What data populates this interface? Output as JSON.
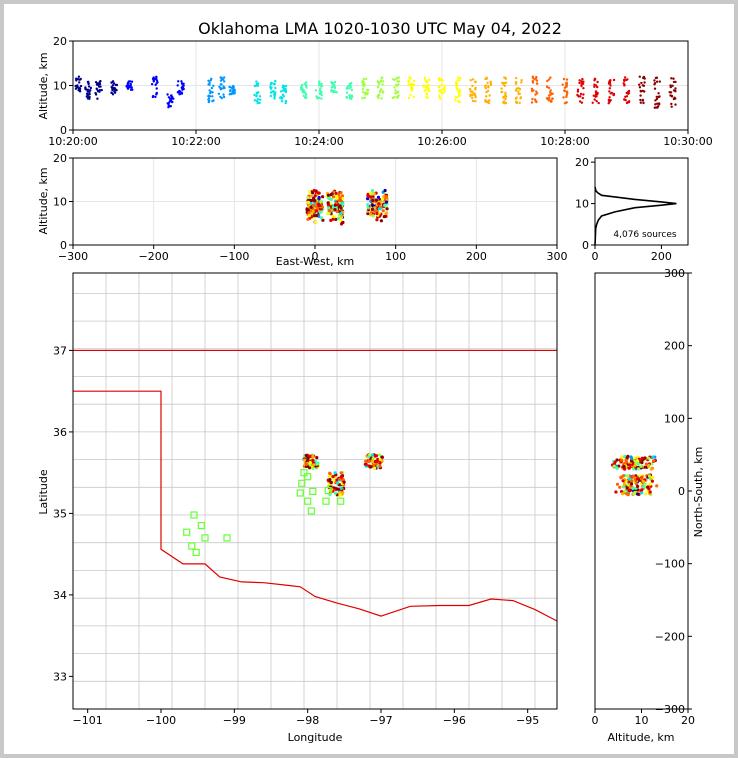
{
  "title": "Oklahoma LMA 1020-1030 UTC May 04, 2022",
  "colors": {
    "time_ramp": [
      "#00008b",
      "#0000ff",
      "#0096ff",
      "#00e5e5",
      "#40ffb0",
      "#a0ff40",
      "#ffff00",
      "#ffb000",
      "#ff6000",
      "#e00000",
      "#8b0000"
    ],
    "state_border": "#e00000",
    "county_lines": "#c8c8c8",
    "stations": "#66ff33",
    "histogram": "#000000",
    "grid": "#e6e6e6"
  },
  "chart_data": [
    {
      "id": "altitude_time",
      "type": "scatter",
      "ylabel": "Altitude, km",
      "xlim": [
        "10:20:00",
        "10:30:00"
      ],
      "ylim": [
        0,
        20
      ],
      "x_ticks": [
        "10:20:00",
        "10:22:00",
        "10:24:00",
        "10:26:00",
        "10:28:00",
        "10:30:00"
      ],
      "y_ticks": [
        0,
        10,
        20
      ],
      "grid": true,
      "clusters": [
        {
          "t": "10:20:05",
          "alt": [
            8,
            12
          ]
        },
        {
          "t": "10:20:15",
          "alt": [
            7,
            11
          ]
        },
        {
          "t": "10:20:25",
          "alt": [
            7,
            11
          ]
        },
        {
          "t": "10:20:40",
          "alt": [
            8,
            11
          ]
        },
        {
          "t": "10:20:55",
          "alt": [
            9,
            11
          ]
        },
        {
          "t": "10:21:20",
          "alt": [
            7,
            12
          ]
        },
        {
          "t": "10:21:35",
          "alt": [
            5,
            8
          ]
        },
        {
          "t": "10:21:45",
          "alt": [
            8,
            11
          ]
        },
        {
          "t": "10:22:15",
          "alt": [
            6,
            12
          ]
        },
        {
          "t": "10:22:25",
          "alt": [
            7,
            12
          ]
        },
        {
          "t": "10:22:35",
          "alt": [
            8,
            10
          ]
        },
        {
          "t": "10:23:00",
          "alt": [
            6,
            11
          ]
        },
        {
          "t": "10:23:15",
          "alt": [
            7,
            11
          ]
        },
        {
          "t": "10:23:25",
          "alt": [
            6,
            10
          ]
        },
        {
          "t": "10:23:45",
          "alt": [
            7,
            11
          ]
        },
        {
          "t": "10:24:00",
          "alt": [
            7,
            11
          ]
        },
        {
          "t": "10:24:15",
          "alt": [
            8,
            11
          ]
        },
        {
          "t": "10:24:30",
          "alt": [
            7,
            11
          ]
        },
        {
          "t": "10:24:45",
          "alt": [
            7,
            12
          ]
        },
        {
          "t": "10:25:00",
          "alt": [
            7,
            12
          ]
        },
        {
          "t": "10:25:15",
          "alt": [
            7,
            12
          ]
        },
        {
          "t": "10:25:30",
          "alt": [
            7,
            12
          ]
        },
        {
          "t": "10:25:45",
          "alt": [
            7,
            12
          ]
        },
        {
          "t": "10:26:00",
          "alt": [
            7,
            12
          ]
        },
        {
          "t": "10:26:15",
          "alt": [
            6,
            12
          ]
        },
        {
          "t": "10:26:30",
          "alt": [
            6,
            12
          ]
        },
        {
          "t": "10:26:45",
          "alt": [
            6,
            12
          ]
        },
        {
          "t": "10:27:00",
          "alt": [
            6,
            12
          ]
        },
        {
          "t": "10:27:15",
          "alt": [
            6,
            12
          ]
        },
        {
          "t": "10:27:30",
          "alt": [
            6,
            12
          ]
        },
        {
          "t": "10:27:45",
          "alt": [
            6,
            12
          ]
        },
        {
          "t": "10:28:00",
          "alt": [
            6,
            12
          ]
        },
        {
          "t": "10:28:15",
          "alt": [
            6,
            12
          ]
        },
        {
          "t": "10:28:30",
          "alt": [
            6,
            12
          ]
        },
        {
          "t": "10:28:45",
          "alt": [
            6,
            12
          ]
        },
        {
          "t": "10:29:00",
          "alt": [
            6,
            12
          ]
        },
        {
          "t": "10:29:15",
          "alt": [
            6,
            12
          ]
        },
        {
          "t": "10:29:30",
          "alt": [
            5,
            12
          ]
        },
        {
          "t": "10:29:45",
          "alt": [
            5,
            12
          ]
        }
      ]
    },
    {
      "id": "altitude_eastwest",
      "type": "scatter",
      "xlabel": "East-West, km",
      "ylabel": "Altitude, km",
      "xlim": [
        -300,
        300
      ],
      "ylim": [
        0,
        20
      ],
      "x_ticks": [
        -300,
        -200,
        -100,
        0,
        100,
        200,
        300
      ],
      "y_ticks": [
        0,
        10,
        20
      ],
      "grid": true,
      "clusters": [
        {
          "x": [
            -10,
            10
          ],
          "alt": [
            5,
            13
          ]
        },
        {
          "x": [
            15,
            35
          ],
          "alt": [
            4,
            13
          ]
        },
        {
          "x": [
            65,
            90
          ],
          "alt": [
            5,
            13
          ]
        }
      ]
    },
    {
      "id": "altitude_histogram",
      "type": "line",
      "annotation": "4,076 sources",
      "xlim": [
        0,
        280
      ],
      "ylim": [
        0,
        21
      ],
      "x_ticks": [
        0,
        200
      ],
      "y_ticks": [
        0,
        10,
        20
      ],
      "profile": [
        [
          0,
          0
        ],
        [
          2,
          4
        ],
        [
          5,
          5
        ],
        [
          10,
          6
        ],
        [
          20,
          7
        ],
        [
          60,
          8
        ],
        [
          120,
          9
        ],
        [
          200,
          9.6
        ],
        [
          245,
          10
        ],
        [
          200,
          10.4
        ],
        [
          120,
          11
        ],
        [
          60,
          11.6
        ],
        [
          20,
          12
        ],
        [
          10,
          12.5
        ],
        [
          3,
          13
        ],
        [
          0,
          14
        ]
      ]
    },
    {
      "id": "plan_view",
      "type": "scatter",
      "xlabel": "Longitude",
      "ylabel": "Latitude",
      "xlim": [
        -101.2,
        -94.6
      ],
      "ylim": [
        32.6,
        37.95
      ],
      "x_ticks": [
        -101,
        -100,
        -99,
        -98,
        -97,
        -96,
        -95
      ],
      "y_ticks": [
        33,
        34,
        35,
        36,
        37
      ],
      "clusters": [
        {
          "lon": [
            -98.05,
            -97.85
          ],
          "lat": [
            35.55,
            35.72
          ]
        },
        {
          "lon": [
            -97.72,
            -97.5
          ],
          "lat": [
            35.22,
            35.5
          ]
        },
        {
          "lon": [
            -97.22,
            -96.98
          ],
          "lat": [
            35.55,
            35.72
          ]
        }
      ],
      "stations": [
        [
          -99.55,
          34.98
        ],
        [
          -99.45,
          34.85
        ],
        [
          -99.65,
          34.77
        ],
        [
          -99.4,
          34.7
        ],
        [
          -99.58,
          34.6
        ],
        [
          -99.52,
          34.52
        ],
        [
          -99.1,
          34.7
        ],
        [
          -98.05,
          35.5
        ],
        [
          -98.0,
          35.45
        ],
        [
          -98.08,
          35.37
        ],
        [
          -98.1,
          35.25
        ],
        [
          -97.93,
          35.27
        ],
        [
          -97.72,
          35.28
        ],
        [
          -98.0,
          35.15
        ],
        [
          -97.95,
          35.03
        ],
        [
          -97.75,
          35.15
        ],
        [
          -97.55,
          35.15
        ]
      ]
    },
    {
      "id": "altitude_northsouth",
      "type": "scatter",
      "xlabel": "Altitude, km",
      "ylabel": "North-South, km",
      "xlim": [
        0,
        20
      ],
      "ylim": [
        -300,
        300
      ],
      "x_ticks": [
        0,
        10,
        20
      ],
      "y_ticks": [
        -300,
        -200,
        -100,
        0,
        100,
        200,
        300
      ],
      "clusters": [
        {
          "alt": [
            3,
            14
          ],
          "y": [
            30,
            48
          ]
        },
        {
          "alt": [
            4,
            14
          ],
          "y": [
            -5,
            22
          ]
        }
      ]
    }
  ]
}
